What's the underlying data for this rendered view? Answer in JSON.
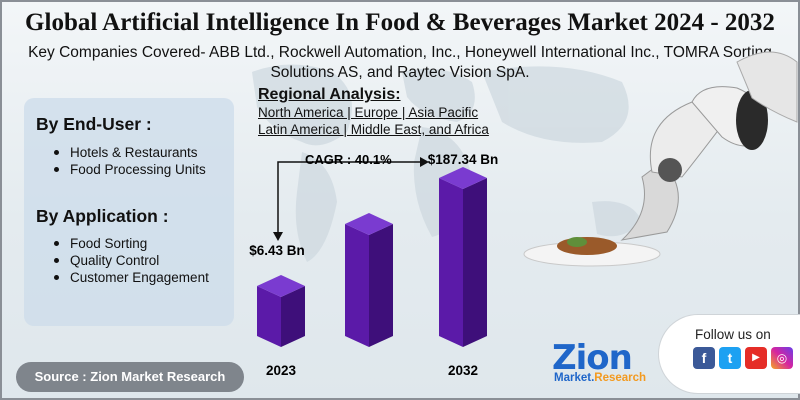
{
  "header": {
    "title": "Global Artificial Intelligence In Food & Beverages Market 2024 - 2032",
    "subtitle": "Key Companies Covered- ABB Ltd., Rockwell Automation, Inc., Honeywell International Inc., TOMRA Sorting Solutions AS, and Raytec Vision SpA."
  },
  "segments": {
    "end_user": {
      "heading": "By End-User :",
      "items": [
        "Hotels & Restaurants",
        "Food Processing Units"
      ]
    },
    "application": {
      "heading": "By Application :",
      "items": [
        "Food Sorting",
        "Quality Control",
        "Customer Engagement"
      ]
    }
  },
  "regional": {
    "heading": "Regional Analysis:",
    "line1": "North America | Europe | Asia Pacific",
    "line2": "Latin America | Middle East, and Africa"
  },
  "chart_data": {
    "type": "bar",
    "categories": [
      "2023",
      "",
      "2032"
    ],
    "values": [
      6.43,
      null,
      187.34
    ],
    "data_labels": [
      "$6.43 Bn",
      "",
      "$187.34 Bn"
    ],
    "cagr_label": "CAGR : 40.1%",
    "bar_color": "#5b1aa8",
    "bar_color_top": "#7a3bd0",
    "bar_color_side": "#3e0f7a"
  },
  "source": {
    "label": "Source : Zion Market Research"
  },
  "social": {
    "label": "Follow us on",
    "icons": [
      "facebook-icon",
      "twitter-icon",
      "youtube-icon",
      "instagram-icon"
    ]
  },
  "logo": {
    "brand": "Zion",
    "tagline_a": "Market.",
    "tagline_b": "Research"
  }
}
